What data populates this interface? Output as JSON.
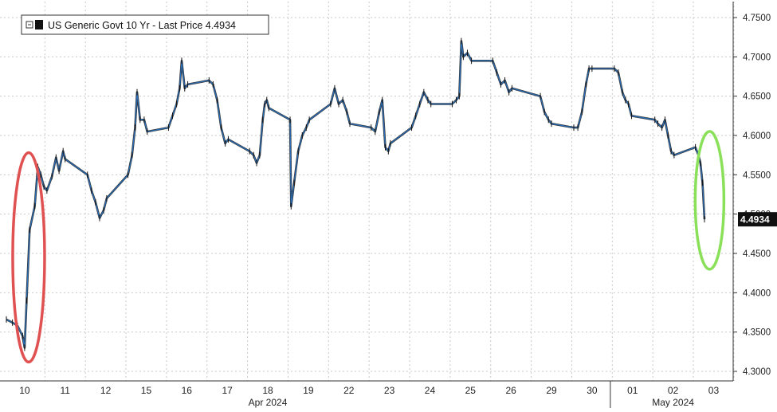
{
  "chart_data": {
    "type": "line",
    "legend": {
      "label": "US Generic Govt 10 Yr - Last Price 4.4934",
      "placement": "top-left"
    },
    "last_price_label": "4.4934",
    "last_price": 4.4934,
    "ylim": [
      4.3,
      4.75
    ],
    "y_ticks": [
      {
        "value": 4.75,
        "label": "4.7500"
      },
      {
        "value": 4.7,
        "label": "4.7000"
      },
      {
        "value": 4.65,
        "label": "4.6500"
      },
      {
        "value": 4.6,
        "label": "4.6000"
      },
      {
        "value": 4.55,
        "label": "4.5500"
      },
      {
        "value": 4.5,
        "label": "4.5000"
      },
      {
        "value": 4.45,
        "label": "4.4500"
      },
      {
        "value": 4.4,
        "label": "4.4000"
      },
      {
        "value": 4.35,
        "label": "4.3500"
      },
      {
        "value": 4.3,
        "label": "4.3000"
      }
    ],
    "x_tick_labels": [
      "10",
      "11",
      "12",
      "15",
      "16",
      "17",
      "18",
      "19",
      "22",
      "23",
      "24",
      "25",
      "26",
      "29",
      "30",
      "01",
      "02",
      "03"
    ],
    "x_group_labels": [
      {
        "label": "Apr 2024",
        "day": "18"
      },
      {
        "label": "May 2024",
        "day": "02"
      }
    ],
    "month_divider_day": "01",
    "grid": true,
    "series": [
      {
        "name": "US Generic Govt 10 Yr",
        "color": "#2a6db5",
        "points": [
          [
            "10",
            0.0,
            4.366
          ],
          [
            "10",
            0.3,
            4.362
          ],
          [
            "10",
            0.55,
            4.358
          ],
          [
            "10",
            0.8,
            4.345
          ],
          [
            "10",
            0.9,
            4.33
          ],
          [
            "10",
            1.0,
            4.39
          ],
          [
            "10",
            1.15,
            4.48
          ],
          [
            "10",
            1.4,
            4.51
          ],
          [
            "10",
            1.55,
            4.56
          ],
          [
            "10",
            1.7,
            4.55
          ],
          [
            "10",
            1.85,
            4.535
          ],
          [
            "11",
            0.0,
            4.53
          ],
          [
            "11",
            0.25,
            4.548
          ],
          [
            "11",
            0.45,
            4.572
          ],
          [
            "11",
            0.6,
            4.555
          ],
          [
            "11",
            0.8,
            4.58
          ],
          [
            "11",
            0.9,
            4.57
          ],
          [
            "12",
            0.0,
            4.55
          ],
          [
            "12",
            0.2,
            4.53
          ],
          [
            "12",
            0.4,
            4.515
          ],
          [
            "12",
            0.6,
            4.495
          ],
          [
            "12",
            0.8,
            4.505
          ],
          [
            "12",
            0.95,
            4.52
          ],
          [
            "15",
            0.0,
            4.55
          ],
          [
            "15",
            0.2,
            4.575
          ],
          [
            "15",
            0.35,
            4.61
          ],
          [
            "15",
            0.45,
            4.655
          ],
          [
            "15",
            0.6,
            4.62
          ],
          [
            "15",
            0.8,
            4.62
          ],
          [
            "15",
            0.95,
            4.605
          ],
          [
            "16",
            0.0,
            4.61
          ],
          [
            "16",
            0.2,
            4.625
          ],
          [
            "16",
            0.4,
            4.64
          ],
          [
            "16",
            0.55,
            4.66
          ],
          [
            "16",
            0.65,
            4.695
          ],
          [
            "16",
            0.8,
            4.66
          ],
          [
            "16",
            0.95,
            4.665
          ],
          [
            "17",
            0.0,
            4.67
          ],
          [
            "17",
            0.2,
            4.665
          ],
          [
            "17",
            0.4,
            4.645
          ],
          [
            "17",
            0.6,
            4.61
          ],
          [
            "17",
            0.8,
            4.59
          ],
          [
            "17",
            0.95,
            4.595
          ],
          [
            "18",
            0.0,
            4.58
          ],
          [
            "18",
            0.2,
            4.575
          ],
          [
            "18",
            0.35,
            4.565
          ],
          [
            "18",
            0.5,
            4.575
          ],
          [
            "18",
            0.65,
            4.62
          ],
          [
            "18",
            0.75,
            4.64
          ],
          [
            "18",
            0.85,
            4.645
          ],
          [
            "18",
            0.95,
            4.635
          ],
          [
            "19",
            0.0,
            4.62
          ],
          [
            "19",
            0.05,
            4.51
          ],
          [
            "19",
            0.2,
            4.54
          ],
          [
            "19",
            0.4,
            4.58
          ],
          [
            "19",
            0.6,
            4.6
          ],
          [
            "19",
            0.8,
            4.61
          ],
          [
            "19",
            0.95,
            4.62
          ],
          [
            "22",
            0.0,
            4.64
          ],
          [
            "22",
            0.2,
            4.66
          ],
          [
            "22",
            0.4,
            4.64
          ],
          [
            "22",
            0.6,
            4.645
          ],
          [
            "22",
            0.8,
            4.63
          ],
          [
            "22",
            0.95,
            4.615
          ],
          [
            "23",
            0.0,
            4.61
          ],
          [
            "23",
            0.2,
            4.605
          ],
          [
            "23",
            0.4,
            4.63
          ],
          [
            "23",
            0.55,
            4.645
          ],
          [
            "23",
            0.7,
            4.585
          ],
          [
            "23",
            0.85,
            4.58
          ],
          [
            "23",
            0.95,
            4.59
          ],
          [
            "24",
            0.0,
            4.61
          ],
          [
            "24",
            0.2,
            4.625
          ],
          [
            "24",
            0.4,
            4.64
          ],
          [
            "24",
            0.6,
            4.655
          ],
          [
            "24",
            0.8,
            4.645
          ],
          [
            "24",
            0.95,
            4.64
          ],
          [
            "25",
            0.0,
            4.64
          ],
          [
            "25",
            0.2,
            4.645
          ],
          [
            "25",
            0.35,
            4.65
          ],
          [
            "25",
            0.45,
            4.72
          ],
          [
            "25",
            0.55,
            4.7
          ],
          [
            "25",
            0.75,
            4.705
          ],
          [
            "25",
            0.95,
            4.695
          ],
          [
            "26",
            0.0,
            4.695
          ],
          [
            "26",
            0.2,
            4.68
          ],
          [
            "26",
            0.4,
            4.665
          ],
          [
            "26",
            0.6,
            4.67
          ],
          [
            "26",
            0.8,
            4.655
          ],
          [
            "26",
            0.95,
            4.66
          ],
          [
            "29",
            0.35,
            4.65
          ],
          [
            "29",
            0.55,
            4.63
          ],
          [
            "29",
            0.75,
            4.62
          ],
          [
            "29",
            0.9,
            4.615
          ],
          [
            "30",
            0.0,
            4.61
          ],
          [
            "30",
            0.2,
            4.61
          ],
          [
            "30",
            0.4,
            4.63
          ],
          [
            "30",
            0.6,
            4.665
          ],
          [
            "30",
            0.75,
            4.685
          ],
          [
            "30",
            0.9,
            4.685
          ],
          [
            "01",
            0.0,
            4.685
          ],
          [
            "01",
            0.2,
            4.68
          ],
          [
            "01",
            0.4,
            4.655
          ],
          [
            "01",
            0.55,
            4.645
          ],
          [
            "01",
            0.7,
            4.64
          ],
          [
            "01",
            0.85,
            4.625
          ],
          [
            "02",
            0.0,
            4.62
          ],
          [
            "02",
            0.15,
            4.615
          ],
          [
            "02",
            0.35,
            4.61
          ],
          [
            "02",
            0.5,
            4.62
          ],
          [
            "02",
            0.65,
            4.6
          ],
          [
            "02",
            0.8,
            4.58
          ],
          [
            "02",
            0.95,
            4.575
          ],
          [
            "03",
            0.0,
            4.585
          ],
          [
            "03",
            0.15,
            4.575
          ],
          [
            "03",
            0.25,
            4.565
          ],
          [
            "03",
            0.35,
            4.54
          ],
          [
            "03",
            0.45,
            4.4934
          ]
        ]
      }
    ]
  }
}
